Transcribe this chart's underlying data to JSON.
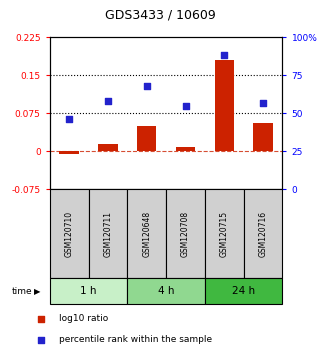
{
  "title": "GDS3433 / 10609",
  "samples": [
    "GSM120710",
    "GSM120711",
    "GSM120648",
    "GSM120708",
    "GSM120715",
    "GSM120716"
  ],
  "groups": [
    {
      "label": "1 h",
      "indices": [
        0,
        1
      ],
      "color": "#c8f0c8"
    },
    {
      "label": "4 h",
      "indices": [
        2,
        3
      ],
      "color": "#90d890"
    },
    {
      "label": "24 h",
      "indices": [
        4,
        5
      ],
      "color": "#40b840"
    }
  ],
  "log10_ratio": [
    -0.005,
    0.015,
    0.05,
    0.008,
    0.18,
    0.055
  ],
  "percentile_rank": [
    46,
    58,
    68,
    55,
    88,
    57
  ],
  "ylim_left": [
    -0.075,
    0.225
  ],
  "ylim_right": [
    0,
    100
  ],
  "yticks_left": [
    -0.075,
    0,
    0.075,
    0.15,
    0.225
  ],
  "yticks_right": [
    0,
    25,
    50,
    75,
    100
  ],
  "ytick_labels_left": [
    "-0.075",
    "0",
    "0.075",
    "0.15",
    "0.225"
  ],
  "ytick_labels_right": [
    "0",
    "25",
    "50",
    "75",
    "100%"
  ],
  "hlines_dotted": [
    0.075,
    0.15
  ],
  "hline_dashed": 0,
  "bar_color": "#cc2200",
  "dot_color": "#2222cc",
  "time_label": "time",
  "legend_bar": "log10 ratio",
  "legend_dot": "percentile rank within the sample",
  "bg_color": "#d0d0d0",
  "plot_bg": "#ffffff"
}
